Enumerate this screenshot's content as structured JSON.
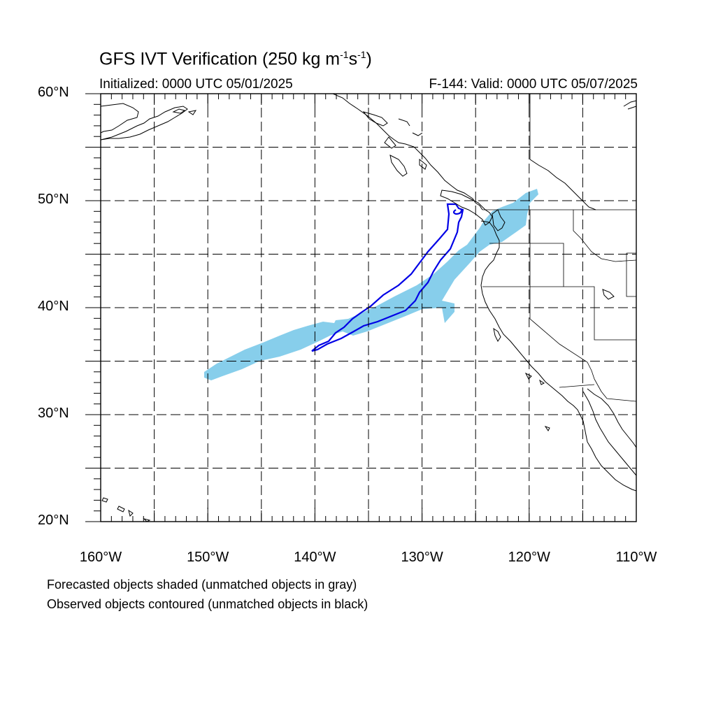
{
  "title": {
    "prefix": "GFS IVT Verification (250 kg m",
    "exp1": "-1",
    "mid": "s",
    "exp2": "-1",
    "suffix": ")"
  },
  "initialized": "Initialized: 0000 UTC 05/01/2025",
  "valid": "F-144: Valid: 0000 UTC 05/07/2025",
  "lat_labels": [
    {
      "text": "60°N",
      "lat": 60
    },
    {
      "text": "50°N",
      "lat": 50
    },
    {
      "text": "40°N",
      "lat": 40
    },
    {
      "text": "30°N",
      "lat": 30
    },
    {
      "text": "20°N",
      "lat": 20
    }
  ],
  "lon_labels": [
    {
      "text": "160°W",
      "lon": -160
    },
    {
      "text": "150°W",
      "lon": -150
    },
    {
      "text": "140°W",
      "lon": -140
    },
    {
      "text": "130°W",
      "lon": -130
    },
    {
      "text": "120°W",
      "lon": -120
    },
    {
      "text": "110°W",
      "lon": -110
    }
  ],
  "notes": {
    "forecast": "Forecasted objects shaded (unmatched objects in gray)",
    "observed": "Observed objects contoured (unmatched objects in black)"
  },
  "map": {
    "lon_range": [
      -160,
      -110
    ],
    "lat_range": [
      20,
      60
    ],
    "grid_interval_deg": 5,
    "forecast_color": "#87ceeb",
    "observed_color": "#0000e6"
  }
}
